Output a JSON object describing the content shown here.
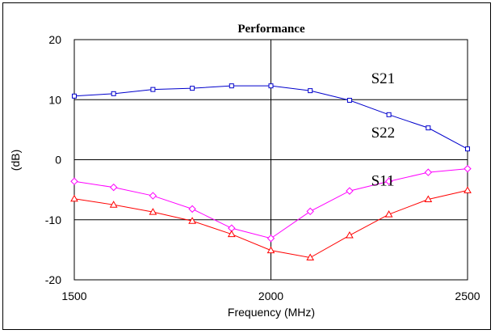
{
  "chart_data": {
    "type": "line",
    "title": "Performance",
    "xlabel": "Frequency (MHz)",
    "ylabel": "(dB)",
    "xlim": [
      1500,
      2500
    ],
    "ylim": [
      -20,
      20
    ],
    "x_ticks": [
      "1500",
      "2000",
      "2500"
    ],
    "y_ticks": [
      "20",
      "10",
      "0",
      "-10",
      "-20"
    ],
    "grid": true,
    "x": [
      1500,
      1600,
      1700,
      1800,
      1900,
      2000,
      2100,
      2200,
      2300,
      2400,
      2500
    ],
    "series": [
      {
        "name": "S21",
        "color": "#0000cc",
        "marker": "square",
        "values": [
          10.6,
          11.0,
          11.7,
          11.9,
          12.3,
          12.3,
          11.5,
          9.9,
          7.5,
          5.3,
          1.8
        ]
      },
      {
        "name": "S22",
        "color": "#ff00ff",
        "marker": "diamond",
        "values": [
          -3.6,
          -4.6,
          -6.0,
          -8.2,
          -11.4,
          -13.1,
          -8.6,
          -5.2,
          -3.6,
          -2.1,
          -1.5
        ]
      },
      {
        "name": "S11",
        "color": "#ff0000",
        "marker": "triangle",
        "values": [
          -6.5,
          -7.5,
          -8.7,
          -10.2,
          -12.4,
          -15.1,
          -16.3,
          -12.6,
          -9.1,
          -6.6,
          -5.1
        ]
      }
    ]
  }
}
